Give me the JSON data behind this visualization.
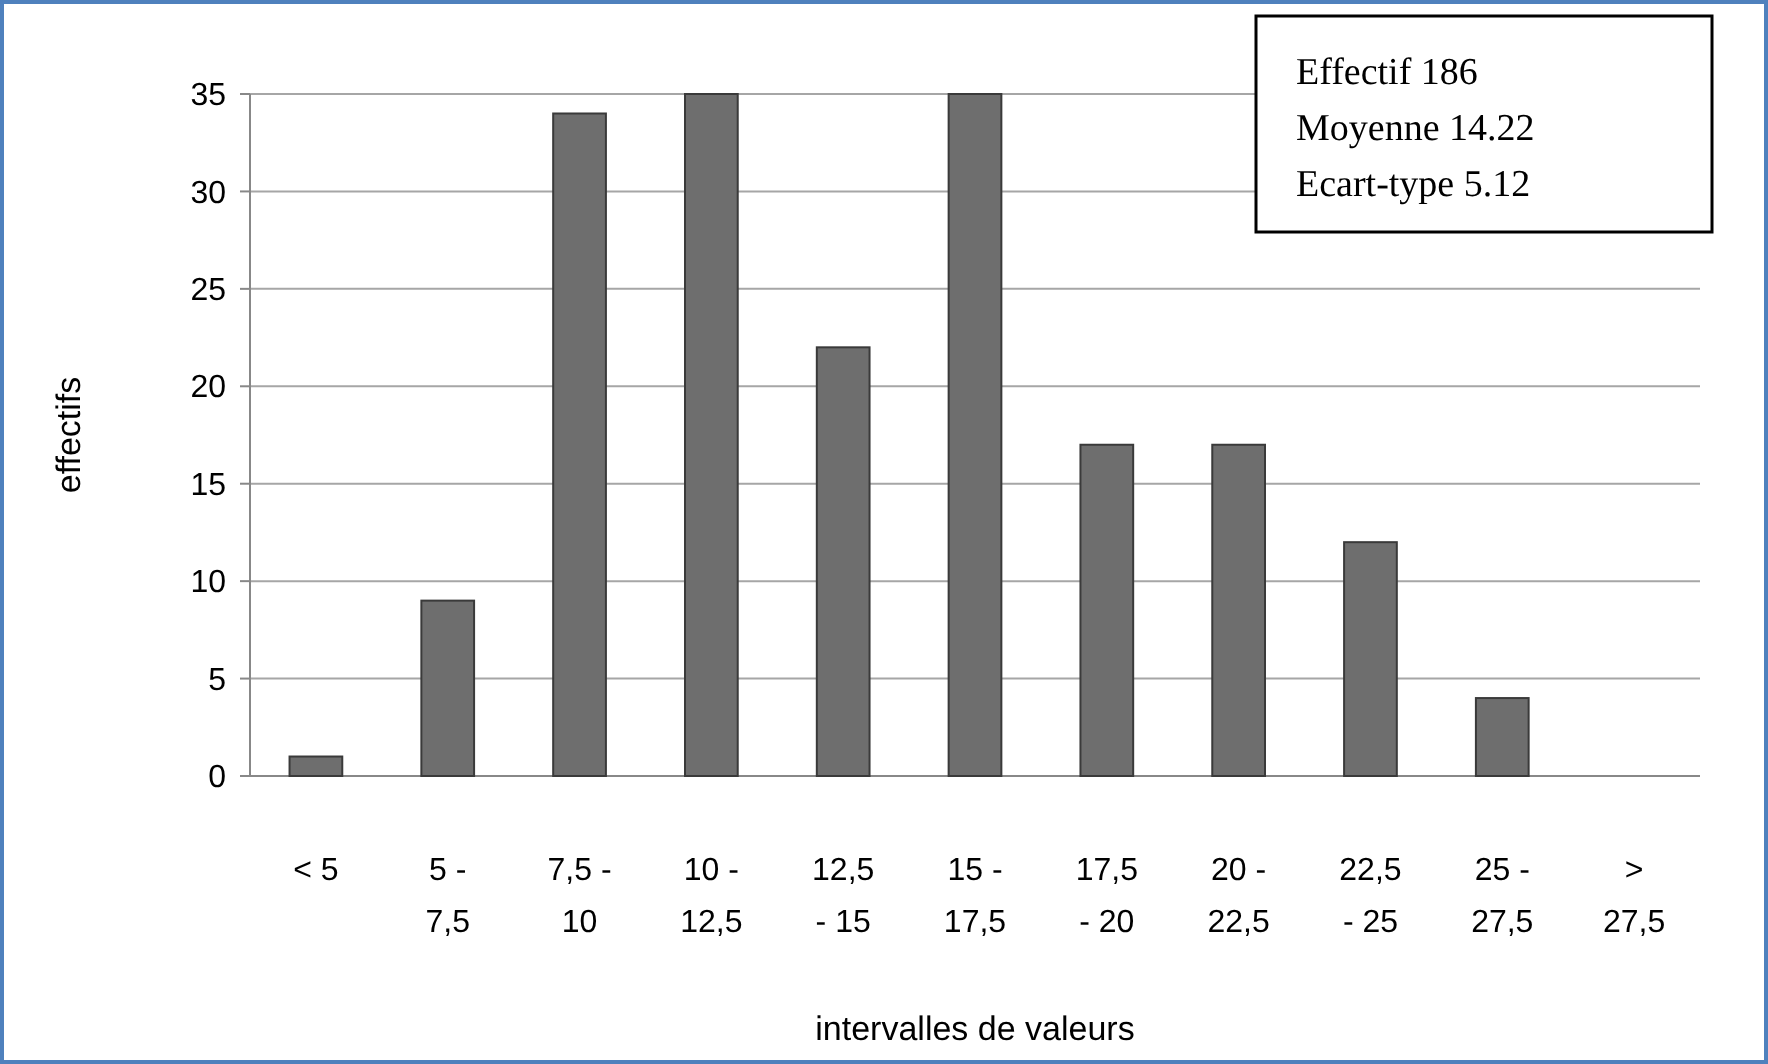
{
  "chart_data": {
    "type": "bar",
    "categories": [
      "< 5",
      "5 - 7,5",
      "7,5 - 10",
      "10 - 12,5",
      "12,5 - 15",
      "15 - 17,5",
      "17,5 - 20",
      "20 - 22,5",
      "22,5 - 25",
      "25 - 27,5",
      "> 27,5"
    ],
    "values": [
      1,
      9,
      34,
      35,
      22,
      35,
      17,
      17,
      12,
      4,
      0
    ],
    "color": "#6e6e6e",
    "xlabel": "intervalles de valeurs",
    "ylabel": "effectifs",
    "ylim": [
      0,
      35
    ],
    "yticks": [
      0,
      5,
      10,
      15,
      20,
      25,
      30,
      35
    ],
    "grid": "y",
    "annotations": [
      "Effectif 186",
      "Moyenne 14.22",
      "Ecart-type 5.12"
    ]
  }
}
